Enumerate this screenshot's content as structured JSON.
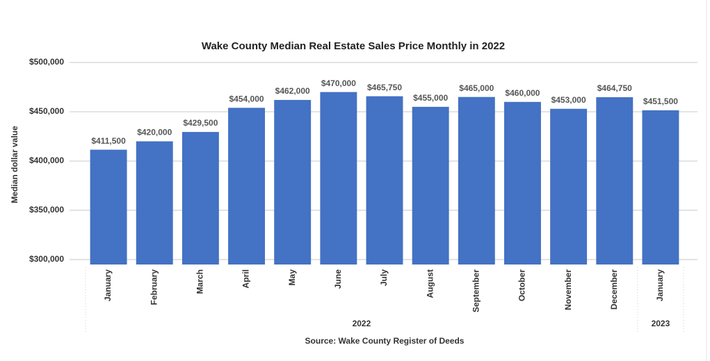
{
  "chart_data": {
    "type": "bar",
    "title": "Wake County Median Real Estate Sales Price Monthly in 2022",
    "y_label": "Median dollar value",
    "source": "Source: Wake County Register of Deeds",
    "categories": [
      "January",
      "February",
      "March",
      "April",
      "May",
      "June",
      "July",
      "August",
      "September",
      "October",
      "November",
      "December",
      "January"
    ],
    "x_groups": [
      {
        "label": "2022",
        "count": 12
      },
      {
        "label": "2023",
        "count": 1
      }
    ],
    "values": [
      411500,
      420000,
      429500,
      454000,
      462000,
      470000,
      465750,
      455000,
      465000,
      460000,
      453000,
      464750,
      451500
    ],
    "value_labels": [
      "$411,500",
      "$420,000",
      "$429,500",
      "$454,000",
      "$462,000",
      "$470,000",
      "$465,750",
      "$455,000",
      "$465,000",
      "$460,000",
      "$453,000",
      "$464,750",
      "$451,500"
    ],
    "color": "#4472c4",
    "ylim": [
      295000,
      500000
    ],
    "yticks": [
      {
        "value": 300000,
        "label": "$300,000"
      },
      {
        "value": 350000,
        "label": "$350,000"
      },
      {
        "value": 400000,
        "label": "$400,000"
      },
      {
        "value": 450000,
        "label": "$450,000"
      },
      {
        "value": 500000,
        "label": "$500,000"
      }
    ],
    "grid": true
  }
}
